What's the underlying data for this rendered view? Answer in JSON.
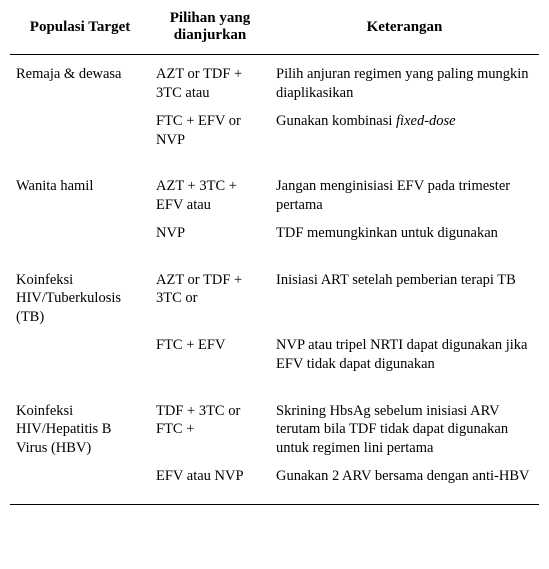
{
  "headers": {
    "col0": "Populasi Target",
    "col1": "Pilihan yang dianjurkan",
    "col2": "Keterangan"
  },
  "groups": [
    {
      "population": "Remaja & dewasa",
      "rows": [
        {
          "option": "AZT or TDF + 3TC atau",
          "note_plain": "Pilih anjuran regimen yang paling mungkin diaplikasikan"
        },
        {
          "option": "FTC + EFV or NVP",
          "note_html": "Gunakan kombinasi <em class=\"term\">fixed-dose</em>"
        }
      ]
    },
    {
      "population": "Wanita hamil",
      "rows": [
        {
          "option": "AZT + 3TC + EFV atau",
          "note_plain": "Jangan menginisiasi EFV pada trimester pertama"
        },
        {
          "option": "NVP",
          "note_plain": "TDF memungkinkan untuk digunakan"
        }
      ]
    },
    {
      "population": "Koinfeksi HIV/Tuberkulosis (TB)",
      "rows": [
        {
          "option": "AZT or TDF + 3TC or",
          "note_plain": "Inisiasi ART setelah pemberian terapi TB"
        },
        {
          "option": "FTC + EFV",
          "note_plain": "NVP atau tripel NRTI dapat digunakan jika EFV tidak dapat digunakan"
        }
      ]
    },
    {
      "population": "Koinfeksi HIV/Hepatitis B Virus (HBV)",
      "rows": [
        {
          "option": "TDF + 3TC or FTC +",
          "note_plain": "Skrining HbsAg sebelum inisiasi ARV terutam bila TDF tidak dapat digunakan untuk regimen lini pertama"
        },
        {
          "option": "EFV atau NVP",
          "note_plain": "Gunakan 2 ARV bersama dengan anti-HBV"
        }
      ]
    }
  ]
}
